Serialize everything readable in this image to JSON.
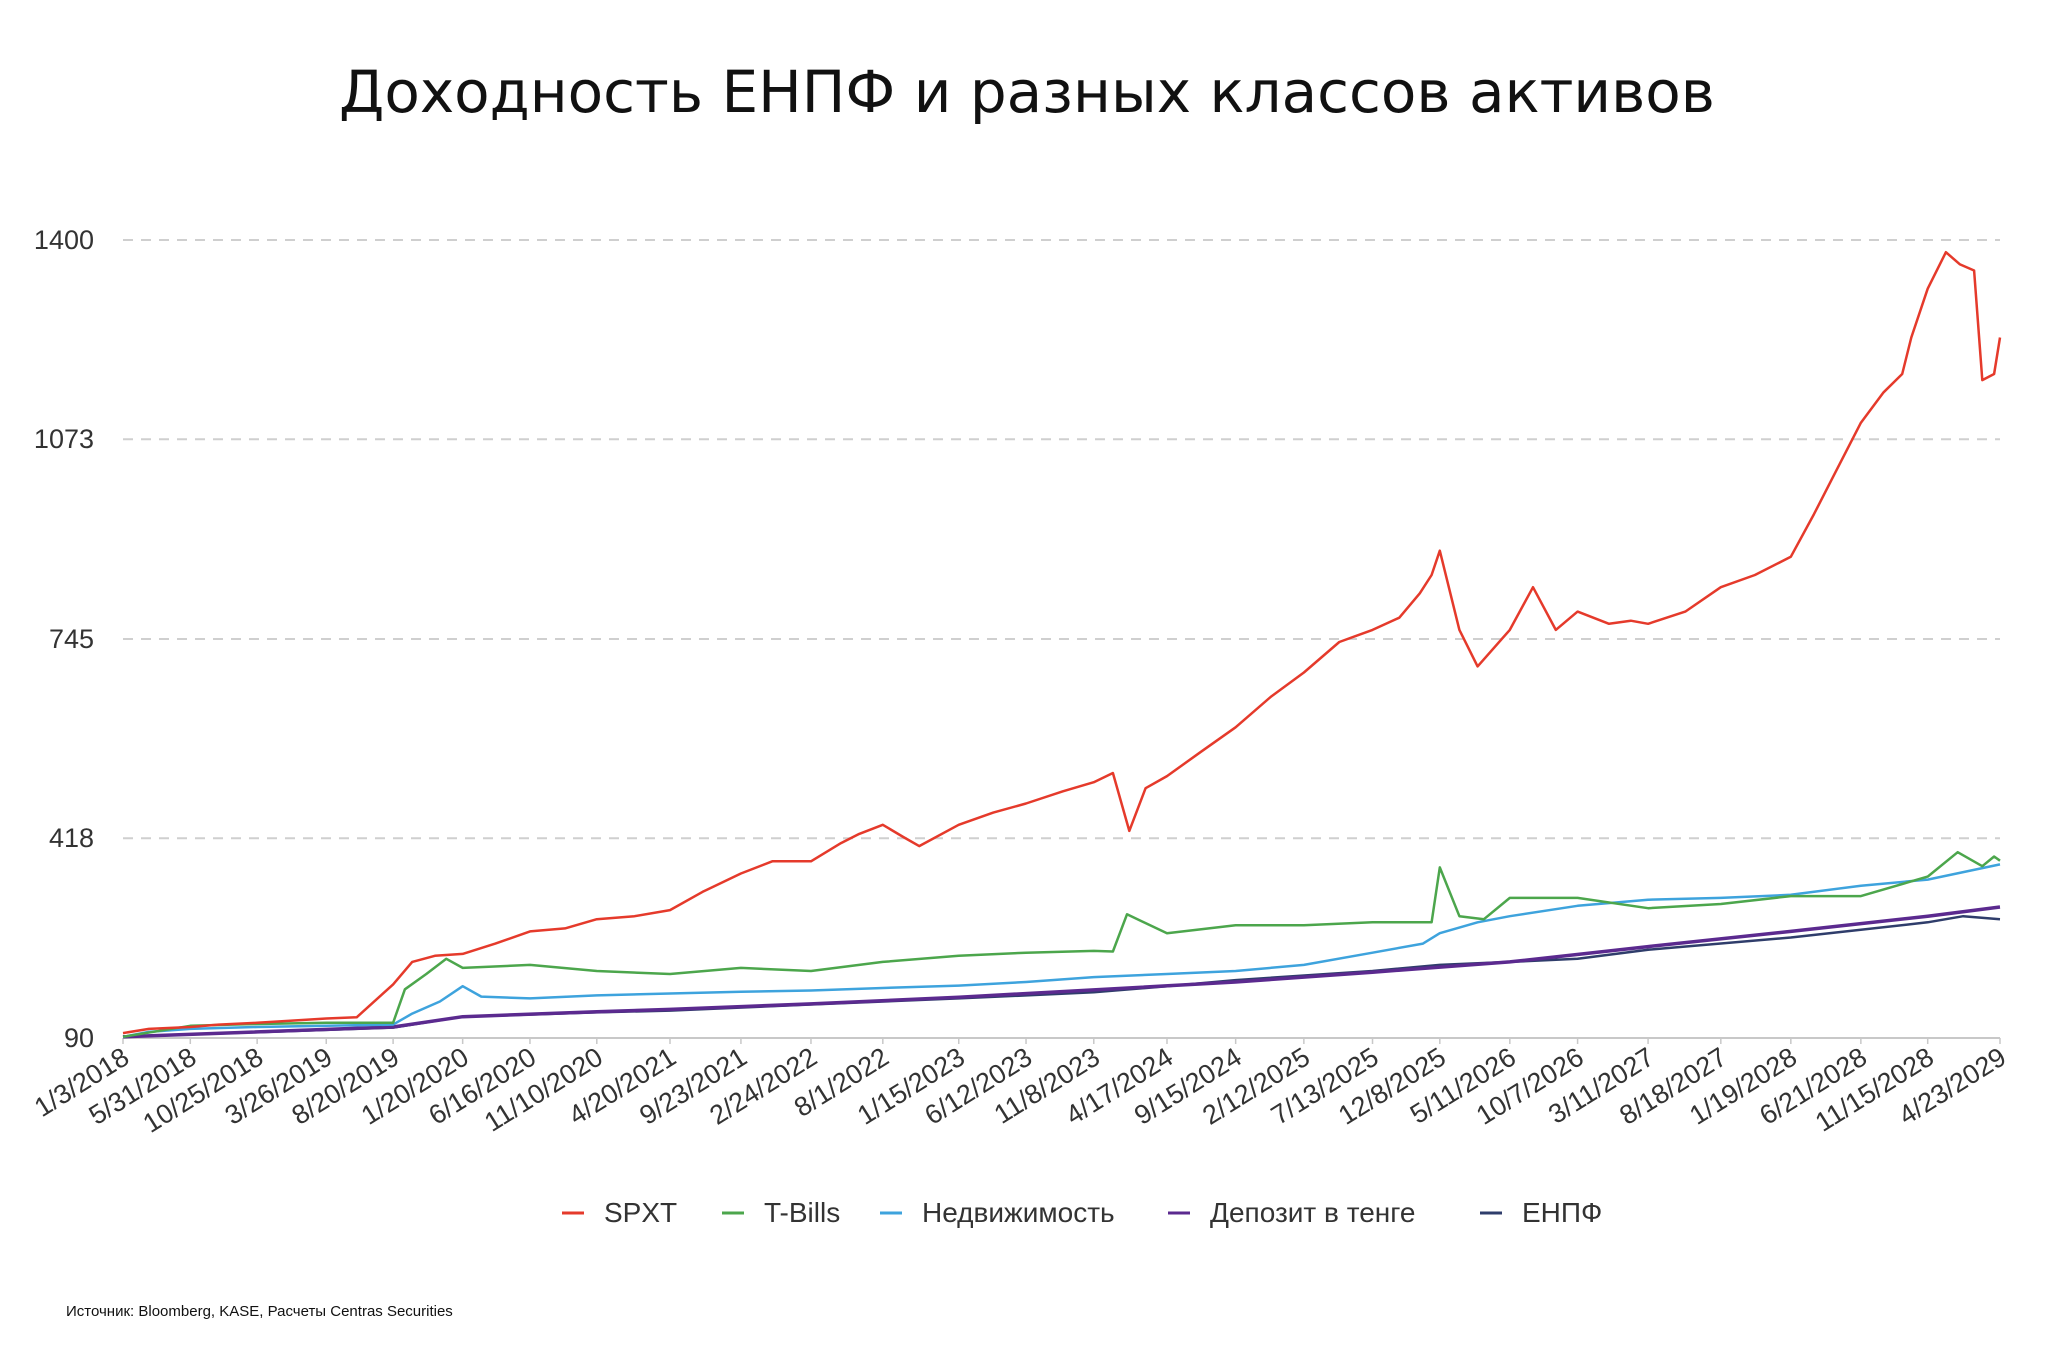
{
  "chart_data": {
    "type": "line",
    "title": "Доходность ЕНПФ и разных классов активов",
    "xlabel": "",
    "ylabel": "",
    "ylim": [
      90,
      1400
    ],
    "y_ticks": [
      "1400",
      "1073",
      "745",
      "418",
      "90"
    ],
    "y_tick_values": [
      1400,
      1073,
      745,
      418,
      90
    ],
    "x_tick_labels": [
      "1/3/2018",
      "5/31/2018",
      "10/25/2018",
      "3/26/2019",
      "8/20/2019",
      "1/20/2020",
      "6/16/2020",
      "11/10/2020",
      "4/20/2021",
      "9/23/2021",
      "2/24/2022",
      "8/1/2022",
      "1/15/2023",
      "6/12/2023",
      "11/8/2023",
      "4/17/2024",
      "9/15/2024",
      "2/12/2025",
      "7/13/2025",
      "12/8/2025",
      "5/11/2026",
      "10/7/2026",
      "3/11/2027",
      "8/18/2027",
      "1/19/2028",
      "6/21/2028",
      "11/15/2028",
      "4/23/2029"
    ],
    "grid": true,
    "legend_position": "bottom",
    "series": [
      {
        "name": "SPXT",
        "color": "#e53a2b",
        "x": [
          "1/3/2018",
          "3/1/2018",
          "5/31/2018",
          "8/1/2018",
          "10/25/2018",
          "1/1/2019",
          "3/26/2019",
          "6/1/2019",
          "8/20/2019",
          "10/1/2019",
          "11/20/2019",
          "1/20/2020",
          "4/1/2020",
          "6/16/2020",
          "9/1/2020",
          "11/10/2020",
          "2/1/2021",
          "4/20/2021",
          "7/1/2021",
          "9/23/2021",
          "12/1/2021",
          "2/24/2022",
          "5/1/2022",
          "6/10/2022",
          "8/1/2022",
          "9/15/2022",
          "10/20/2022",
          "1/15/2023",
          "4/1/2023",
          "6/12/2023",
          "9/1/2023",
          "11/8/2023",
          "12/20/2023",
          "1/25/2024",
          "3/1/2024",
          "4/17/2024",
          "7/1/2024",
          "9/15/2024",
          "12/1/2024",
          "2/12/2025",
          "5/1/2025",
          "7/13/2025",
          "9/10/2025",
          "10/25/2025",
          "11/20/2025",
          "12/8/2025",
          "1/20/2026",
          "3/1/2026",
          "5/11/2026",
          "7/1/2026",
          "8/20/2026",
          "10/7/2026",
          "12/15/2026",
          "2/1/2027",
          "3/11/2027",
          "6/1/2027",
          "8/18/2027",
          "11/1/2027",
          "1/19/2028",
          "3/10/2028",
          "4/20/2028",
          "6/21/2028",
          "8/10/2028",
          "9/20/2028",
          "10/10/2028",
          "11/15/2028",
          "12/25/2028",
          "1/25/2029",
          "2/25/2029",
          "3/15/2029",
          "4/10/2029",
          "4/23/2029"
        ],
        "y": [
          98,
          105,
          108,
          112,
          115,
          118,
          122,
          124,
          178,
          215,
          225,
          228,
          245,
          265,
          270,
          285,
          290,
          300,
          330,
          360,
          380,
          380,
          410,
          425,
          440,
          420,
          405,
          440,
          460,
          475,
          495,
          510,
          525,
          430,
          500,
          520,
          560,
          600,
          650,
          690,
          740,
          760,
          780,
          820,
          850,
          890,
          760,
          700,
          760,
          830,
          760,
          790,
          770,
          775,
          770,
          790,
          830,
          850,
          880,
          950,
          1010,
          1100,
          1150,
          1180,
          1240,
          1320,
          1380,
          1360,
          1350,
          1170,
          1180,
          1240
        ]
      },
      {
        "name": "T-Bills",
        "color": "#4ca64c",
        "x": [
          "1/3/2018",
          "5/31/2018",
          "10/25/2018",
          "3/26/2019",
          "8/20/2019",
          "9/15/2019",
          "11/1/2019",
          "12/15/2019",
          "1/20/2020",
          "6/16/2020",
          "11/10/2020",
          "4/20/2021",
          "9/23/2021",
          "2/24/2022",
          "8/1/2022",
          "1/15/2023",
          "6/12/2023",
          "11/8/2023",
          "12/20/2023",
          "1/20/2024",
          "4/17/2024",
          "9/15/2024",
          "2/12/2025",
          "7/13/2025",
          "11/20/2025",
          "12/8/2025",
          "1/20/2026",
          "3/15/2026",
          "5/11/2026",
          "10/7/2026",
          "3/11/2027",
          "8/18/2027",
          "1/19/2028",
          "6/21/2028",
          "11/15/2028",
          "1/20/2029",
          "3/15/2029",
          "4/10/2029",
          "4/23/2029"
        ],
        "y": [
          92,
          110,
          113,
          115,
          115,
          170,
          195,
          220,
          205,
          210,
          200,
          195,
          205,
          200,
          215,
          225,
          230,
          233,
          232,
          293,
          262,
          275,
          275,
          280,
          280,
          370,
          290,
          285,
          320,
          320,
          303,
          310,
          323,
          323,
          355,
          395,
          372,
          388,
          381
        ]
      },
      {
        "name": "Недвижимость",
        "color": "#3ea3dd",
        "x": [
          "1/3/2018",
          "3/1/2018",
          "5/31/2018",
          "10/25/2018",
          "3/26/2019",
          "8/20/2019",
          "10/1/2019",
          "12/1/2019",
          "1/20/2020",
          "3/1/2020",
          "6/16/2020",
          "11/10/2020",
          "4/20/2021",
          "9/23/2021",
          "2/24/2022",
          "8/1/2022",
          "1/15/2023",
          "6/12/2023",
          "11/8/2023",
          "4/17/2024",
          "9/15/2024",
          "2/12/2025",
          "7/13/2025",
          "11/1/2025",
          "12/8/2025",
          "3/1/2026",
          "5/11/2026",
          "10/7/2026",
          "3/11/2027",
          "8/18/2027",
          "1/19/2028",
          "6/21/2028",
          "11/15/2028",
          "4/23/2029"
        ],
        "y": [
          92,
          100,
          105,
          108,
          110,
          112,
          130,
          150,
          175,
          158,
          155,
          160,
          163,
          166,
          168,
          172,
          176,
          182,
          190,
          195,
          200,
          210,
          230,
          245,
          262,
          280,
          290,
          307,
          317,
          320,
          325,
          340,
          350,
          375
        ]
      },
      {
        "name": "Депозит в тенге",
        "color": "#5b2a8f",
        "x": [
          "1/3/2018",
          "8/20/2019",
          "1/20/2020",
          "11/10/2020",
          "4/20/2021",
          "2/24/2022",
          "1/15/2023",
          "11/8/2023",
          "9/15/2024",
          "7/13/2025",
          "5/11/2026",
          "3/11/2027",
          "1/19/2028",
          "11/15/2028",
          "4/23/2029"
        ],
        "y": [
          92,
          108,
          125,
          133,
          137,
          146,
          157,
          169,
          182,
          198,
          215,
          240,
          265,
          290,
          305
        ]
      },
      {
        "name": "ЕНПФ",
        "color": "#2f3d6b",
        "x": [
          "1/3/2018",
          "8/20/2019",
          "1/20/2020",
          "11/10/2020",
          "4/20/2021",
          "2/24/2022",
          "1/15/2023",
          "11/8/2023",
          "4/17/2024",
          "9/15/2024",
          "7/13/2025",
          "12/8/2025",
          "5/11/2026",
          "10/7/2026",
          "3/11/2027",
          "1/19/2028",
          "11/15/2028",
          "2/1/2029",
          "4/23/2029"
        ],
        "y": [
          92,
          107,
          125,
          132,
          135,
          145,
          155,
          165,
          175,
          185,
          200,
          210,
          215,
          220,
          235,
          255,
          280,
          290,
          285
        ]
      }
    ]
  },
  "source_note": "Источник: Bloomberg, KASE, Расчеты Centras Securities"
}
